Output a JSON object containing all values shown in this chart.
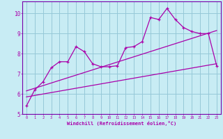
{
  "bg_color": "#c8ecf4",
  "line_color": "#aa00aa",
  "grid_color": "#96c8d8",
  "xlabel": "Windchill (Refroidissement éolien,°C)",
  "xlim": [
    -0.5,
    23.5
  ],
  "ylim": [
    5,
    10.6
  ],
  "yticks": [
    5,
    6,
    7,
    8,
    9,
    10
  ],
  "xticks": [
    0,
    1,
    2,
    3,
    4,
    5,
    6,
    7,
    8,
    9,
    10,
    11,
    12,
    13,
    14,
    15,
    16,
    17,
    18,
    19,
    20,
    21,
    22,
    23
  ],
  "main_x": [
    0,
    1,
    2,
    3,
    4,
    5,
    6,
    7,
    8,
    9,
    10,
    11,
    12,
    13,
    14,
    15,
    16,
    17,
    18,
    19,
    20,
    21,
    22,
    23
  ],
  "main_y": [
    5.4,
    6.2,
    6.6,
    7.3,
    7.6,
    7.6,
    8.35,
    8.1,
    7.5,
    7.35,
    7.35,
    7.4,
    8.3,
    8.35,
    8.6,
    9.8,
    9.7,
    10.25,
    9.7,
    9.3,
    9.1,
    9.0,
    9.0,
    7.4
  ],
  "trend1_x": [
    0,
    23
  ],
  "trend1_y": [
    6.15,
    9.15
  ],
  "trend2_x": [
    0,
    23
  ],
  "trend2_y": [
    5.85,
    7.5
  ],
  "spine_color": "#7700aa"
}
